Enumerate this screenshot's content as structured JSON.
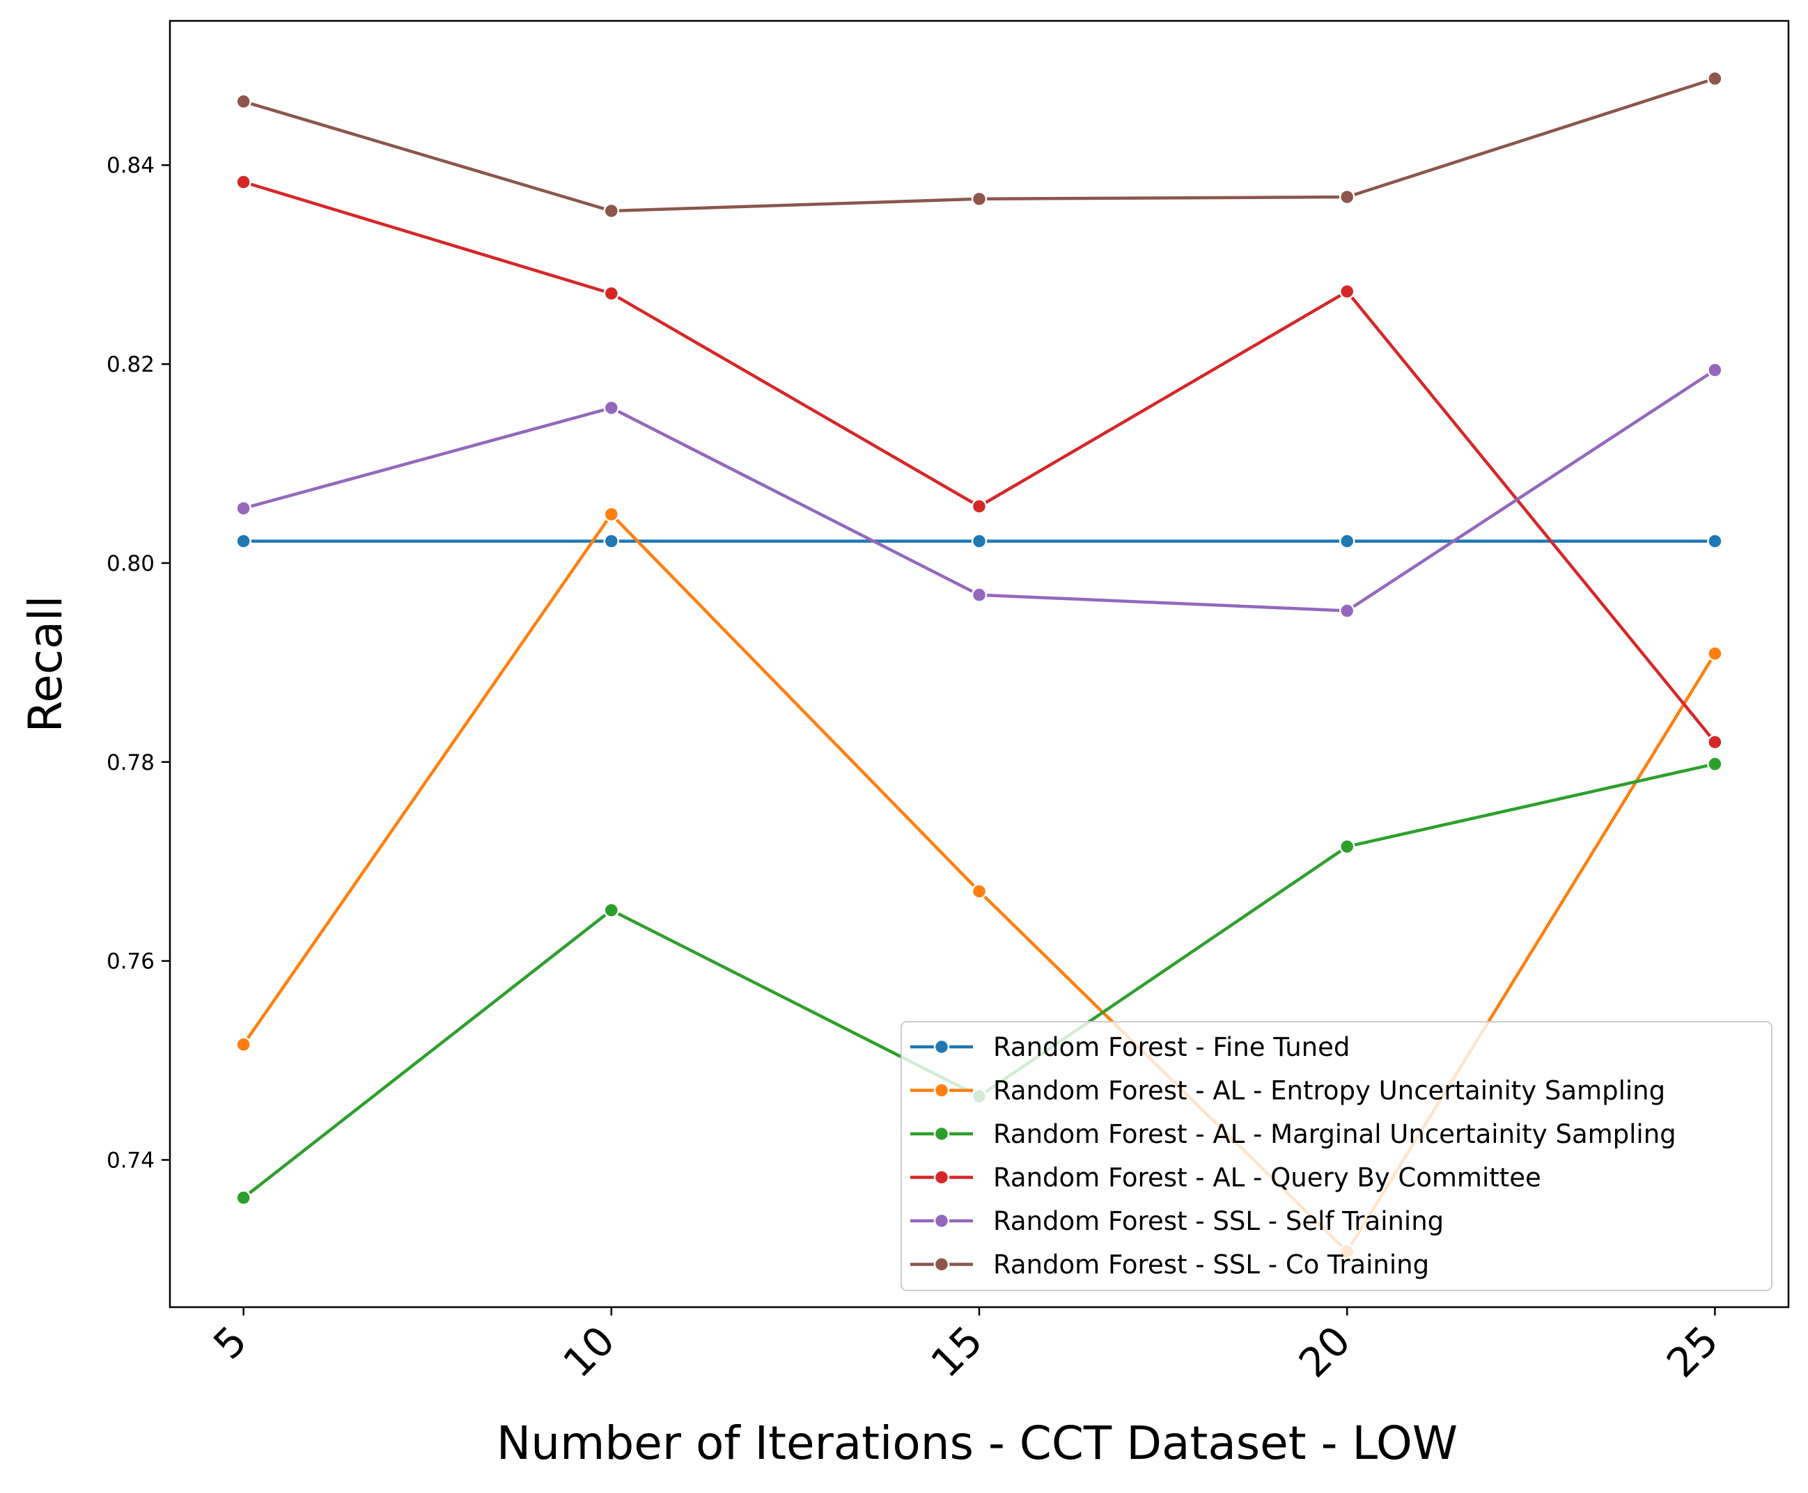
{
  "chart_data": {
    "type": "line",
    "title": "",
    "xlabel": "Number of Iterations - CCT Dataset - LOW",
    "ylabel": "Recall",
    "x": [
      5,
      10,
      15,
      20,
      25
    ],
    "x_ticks": [
      "5",
      "10",
      "15",
      "20",
      "25"
    ],
    "y_ticks": [
      "0.74",
      "0.76",
      "0.78",
      "0.80",
      "0.82",
      "0.84"
    ],
    "xlim": [
      4.0,
      26.0
    ],
    "ylim": [
      0.7252,
      0.8545
    ],
    "grid": false,
    "legend_position": "lower-right",
    "series": [
      {
        "name": "Random Forest - Fine Tuned",
        "color": "#1f77b4",
        "values": [
          0.8022,
          0.8022,
          0.8022,
          0.8022,
          0.8022
        ]
      },
      {
        "name": "Random Forest - AL - Entropy Uncertainity Sampling",
        "color": "#ff7f0e",
        "values": [
          0.7516,
          0.8049,
          0.767,
          0.7308,
          0.7909
        ]
      },
      {
        "name": "Random Forest - AL - Marginal Uncertainity Sampling",
        "color": "#2ca02c",
        "values": [
          0.7362,
          0.7651,
          0.7464,
          0.7715,
          0.7798
        ]
      },
      {
        "name": "Random Forest - AL - Query By Committee",
        "color": "#d62728",
        "values": [
          0.8383,
          0.8271,
          0.8057,
          0.8273,
          0.782
        ]
      },
      {
        "name": "Random Forest - SSL - Self Training",
        "color": "#9467bd",
        "values": [
          0.8055,
          0.8156,
          0.7968,
          0.7952,
          0.8194
        ]
      },
      {
        "name": "Random Forest - SSL - Co Training",
        "color": "#8c564b",
        "values": [
          0.8464,
          0.8354,
          0.8366,
          0.8368,
          0.8487
        ]
      }
    ]
  }
}
